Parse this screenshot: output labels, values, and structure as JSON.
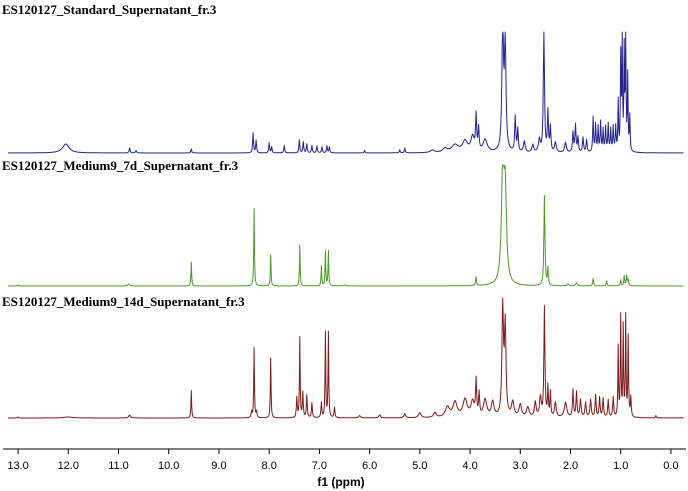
{
  "chart_data": {
    "type": "line",
    "xlabel": "f1 (ppm)",
    "xlim": [
      13.3,
      -0.3
    ],
    "x_reversed": true,
    "ticks": [
      "13.0",
      "12.0",
      "11.0",
      "10.0",
      "9.0",
      "8.0",
      "7.0",
      "6.0",
      "5.0",
      "4.0",
      "3.0",
      "2.0",
      "1.0",
      "0.0"
    ],
    "tick_values": [
      13,
      12,
      11,
      10,
      9,
      8,
      7,
      6,
      5,
      4,
      3,
      2,
      1,
      0
    ],
    "series": [
      {
        "name": "ES120127_Standard_Supernatant_fr.3",
        "color": "#23238e",
        "peaks": [
          [
            12.05,
            0.18,
            0.08
          ],
          [
            10.78,
            0.1,
            0.012
          ],
          [
            10.65,
            0.05,
            0.012
          ],
          [
            9.55,
            0.08,
            0.01
          ],
          [
            8.32,
            0.4,
            0.01
          ],
          [
            8.26,
            0.25,
            0.01
          ],
          [
            8.0,
            0.2,
            0.01
          ],
          [
            7.95,
            0.12,
            0.01
          ],
          [
            7.7,
            0.15,
            0.01
          ],
          [
            7.4,
            0.26,
            0.01
          ],
          [
            7.32,
            0.22,
            0.01
          ],
          [
            7.25,
            0.18,
            0.01
          ],
          [
            7.15,
            0.15,
            0.01
          ],
          [
            7.05,
            0.14,
            0.01
          ],
          [
            6.95,
            0.12,
            0.01
          ],
          [
            6.85,
            0.14,
            0.01
          ],
          [
            6.8,
            0.12,
            0.01
          ],
          [
            6.1,
            0.05,
            0.01
          ],
          [
            5.4,
            0.06,
            0.01
          ],
          [
            5.3,
            0.1,
            0.01
          ],
          [
            4.75,
            0.05,
            0.05
          ],
          [
            4.5,
            0.08,
            0.05
          ],
          [
            4.3,
            0.15,
            0.08
          ],
          [
            4.1,
            0.22,
            0.06
          ],
          [
            3.95,
            0.3,
            0.04
          ],
          [
            3.88,
            0.7,
            0.012
          ],
          [
            3.83,
            0.45,
            0.012
          ],
          [
            3.7,
            0.25,
            0.05
          ],
          [
            3.35,
            2.6,
            0.018
          ],
          [
            3.3,
            2.2,
            0.018
          ],
          [
            3.1,
            0.7,
            0.012
          ],
          [
            3.05,
            0.45,
            0.012
          ],
          [
            2.92,
            0.22,
            0.02
          ],
          [
            2.75,
            0.15,
            0.02
          ],
          [
            2.62,
            0.25,
            0.02
          ],
          [
            2.53,
            2.6,
            0.013
          ],
          [
            2.45,
            0.8,
            0.012
          ],
          [
            2.4,
            0.5,
            0.012
          ],
          [
            2.3,
            0.2,
            0.02
          ],
          [
            2.1,
            0.2,
            0.02
          ],
          [
            1.95,
            0.4,
            0.012
          ],
          [
            1.9,
            0.55,
            0.012
          ],
          [
            1.85,
            0.3,
            0.012
          ],
          [
            1.75,
            0.3,
            0.012
          ],
          [
            1.68,
            0.25,
            0.012
          ],
          [
            1.55,
            0.7,
            0.01
          ],
          [
            1.5,
            0.55,
            0.01
          ],
          [
            1.45,
            0.5,
            0.01
          ],
          [
            1.4,
            0.6,
            0.01
          ],
          [
            1.35,
            0.45,
            0.01
          ],
          [
            1.3,
            0.5,
            0.01
          ],
          [
            1.25,
            0.55,
            0.01
          ],
          [
            1.2,
            0.45,
            0.01
          ],
          [
            1.15,
            0.5,
            0.01
          ],
          [
            1.1,
            0.5,
            0.01
          ],
          [
            1.05,
            1.0,
            0.008
          ],
          [
            1.0,
            1.9,
            0.008
          ],
          [
            0.97,
            2.2,
            0.008
          ],
          [
            0.93,
            2.0,
            0.008
          ],
          [
            0.9,
            2.3,
            0.008
          ],
          [
            0.86,
            1.5,
            0.008
          ],
          [
            0.82,
            0.7,
            0.008
          ]
        ]
      },
      {
        "name": "ES120127_Medium9_7d_Supernatant_fr.3",
        "color": "#4a9a2a",
        "peaks": [
          [
            13.0,
            0.02,
            0.01
          ],
          [
            10.8,
            0.04,
            0.02
          ],
          [
            9.55,
            0.48,
            0.008
          ],
          [
            8.3,
            1.55,
            0.008
          ],
          [
            7.97,
            0.62,
            0.008
          ],
          [
            7.39,
            0.82,
            0.008
          ],
          [
            6.96,
            0.4,
            0.008
          ],
          [
            6.88,
            0.7,
            0.008
          ],
          [
            6.82,
            0.7,
            0.008
          ],
          [
            6.5,
            0.02,
            0.03
          ],
          [
            3.88,
            0.18,
            0.01
          ],
          [
            3.35,
            2.2,
            0.03
          ],
          [
            3.3,
            1.8,
            0.03
          ],
          [
            2.52,
            1.8,
            0.012
          ],
          [
            2.45,
            0.35,
            0.01
          ],
          [
            2.05,
            0.04,
            0.02
          ],
          [
            1.88,
            0.06,
            0.02
          ],
          [
            1.55,
            0.15,
            0.01
          ],
          [
            1.28,
            0.1,
            0.01
          ],
          [
            1.0,
            0.12,
            0.01
          ],
          [
            0.93,
            0.2,
            0.01
          ],
          [
            0.88,
            0.2,
            0.01
          ],
          [
            0.85,
            0.12,
            0.01
          ]
        ]
      },
      {
        "name": "ES120127_Medium9_14d_Supernatant_fr.3",
        "color": "#7a1a1a",
        "peaks": [
          [
            13.0,
            0.02,
            0.01
          ],
          [
            12.0,
            0.02,
            0.1
          ],
          [
            10.78,
            0.06,
            0.02
          ],
          [
            9.55,
            0.55,
            0.008
          ],
          [
            8.35,
            0.12,
            0.01
          ],
          [
            8.3,
            1.4,
            0.008
          ],
          [
            8.25,
            0.12,
            0.01
          ],
          [
            7.97,
            1.2,
            0.008
          ],
          [
            7.45,
            0.4,
            0.01
          ],
          [
            7.39,
            1.6,
            0.008
          ],
          [
            7.33,
            0.5,
            0.01
          ],
          [
            7.25,
            0.45,
            0.01
          ],
          [
            7.15,
            0.3,
            0.01
          ],
          [
            6.96,
            0.3,
            0.01
          ],
          [
            6.88,
            1.7,
            0.008
          ],
          [
            6.82,
            1.7,
            0.008
          ],
          [
            6.7,
            0.2,
            0.01
          ],
          [
            6.2,
            0.05,
            0.02
          ],
          [
            5.8,
            0.06,
            0.02
          ],
          [
            5.3,
            0.08,
            0.02
          ],
          [
            5.0,
            0.1,
            0.03
          ],
          [
            4.7,
            0.1,
            0.03
          ],
          [
            4.45,
            0.2,
            0.05
          ],
          [
            4.3,
            0.3,
            0.05
          ],
          [
            4.1,
            0.35,
            0.05
          ],
          [
            3.95,
            0.3,
            0.04
          ],
          [
            3.88,
            0.7,
            0.012
          ],
          [
            3.82,
            0.45,
            0.012
          ],
          [
            3.7,
            0.35,
            0.04
          ],
          [
            3.55,
            0.3,
            0.03
          ],
          [
            3.35,
            2.2,
            0.018
          ],
          [
            3.3,
            1.8,
            0.018
          ],
          [
            3.15,
            0.3,
            0.03
          ],
          [
            3.0,
            0.25,
            0.03
          ],
          [
            2.85,
            0.2,
            0.03
          ],
          [
            2.7,
            0.3,
            0.02
          ],
          [
            2.6,
            0.4,
            0.02
          ],
          [
            2.52,
            2.2,
            0.012
          ],
          [
            2.45,
            0.6,
            0.01
          ],
          [
            2.4,
            0.5,
            0.01
          ],
          [
            2.3,
            0.3,
            0.02
          ],
          [
            2.1,
            0.3,
            0.03
          ],
          [
            1.95,
            0.55,
            0.012
          ],
          [
            1.88,
            0.5,
            0.012
          ],
          [
            1.8,
            0.35,
            0.015
          ],
          [
            1.7,
            0.3,
            0.015
          ],
          [
            1.6,
            0.35,
            0.015
          ],
          [
            1.5,
            0.45,
            0.012
          ],
          [
            1.42,
            0.4,
            0.012
          ],
          [
            1.35,
            0.38,
            0.012
          ],
          [
            1.25,
            0.35,
            0.012
          ],
          [
            1.15,
            0.4,
            0.012
          ],
          [
            1.05,
            1.4,
            0.008
          ],
          [
            1.0,
            2.0,
            0.008
          ],
          [
            0.95,
            1.8,
            0.008
          ],
          [
            0.9,
            2.0,
            0.008
          ],
          [
            0.85,
            1.6,
            0.008
          ],
          [
            0.8,
            0.4,
            0.01
          ],
          [
            0.3,
            0.05,
            0.01
          ]
        ]
      }
    ]
  }
}
